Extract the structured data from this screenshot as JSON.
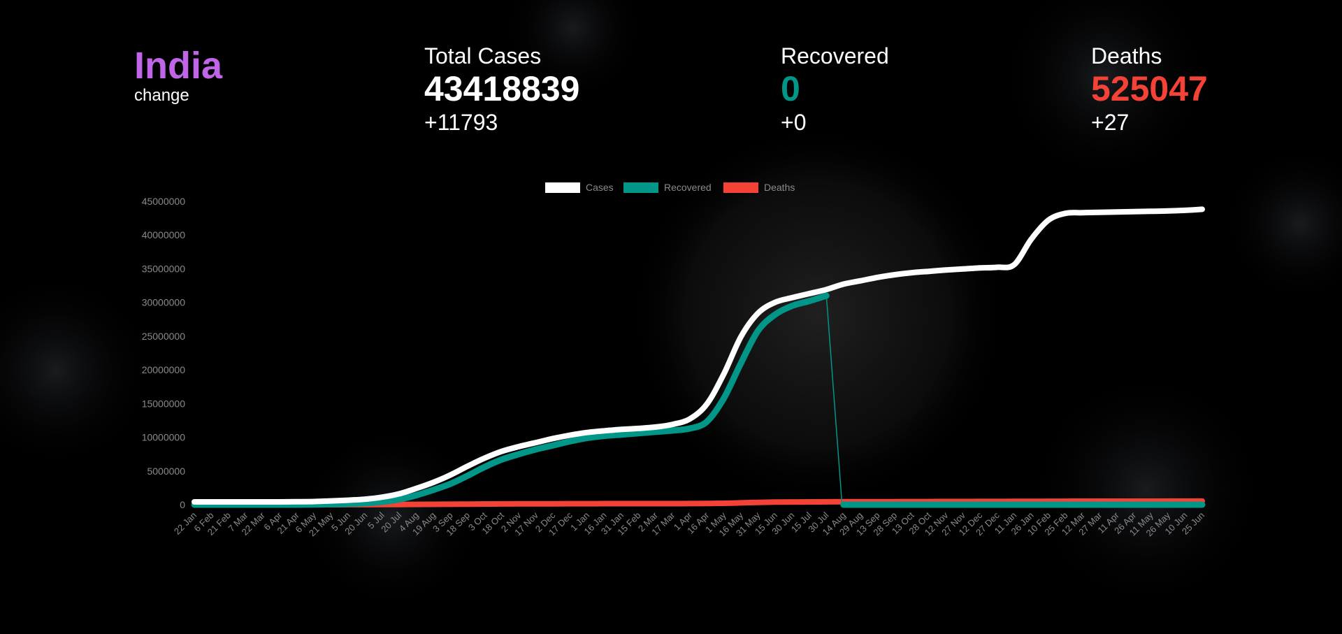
{
  "header": {
    "country": "India",
    "change_label": "change",
    "colors": {
      "country": "#c165e8",
      "cases": "#ffffff",
      "recovered": "#009688",
      "deaths": "#f44336"
    }
  },
  "stats": {
    "total_cases": {
      "label": "Total Cases",
      "value": "43418839",
      "delta": "+11793"
    },
    "recovered": {
      "label": "Recovered",
      "value": "0",
      "delta": "+0"
    },
    "deaths": {
      "label": "Deaths",
      "value": "525047",
      "delta": "+27"
    }
  },
  "chart_data": {
    "type": "line",
    "legend": [
      "Cases",
      "Recovered",
      "Deaths"
    ],
    "legend_position": "top-center",
    "grid": false,
    "ylim": [
      0,
      45000000
    ],
    "y_ticks": [
      "45000000",
      "40000000",
      "35000000",
      "30000000",
      "25000000",
      "20000000",
      "15000000",
      "10000000",
      "5000000",
      "0"
    ],
    "categories": [
      "22 Jan",
      "6 Feb",
      "21 Feb",
      "7 Mar",
      "22 Mar",
      "6 Apr",
      "21 Apr",
      "6 May",
      "21 May",
      "5 Jun",
      "20 Jun",
      "5 Jul",
      "20 Jul",
      "4 Aug",
      "19 Aug",
      "3 Sep",
      "18 Sep",
      "3 Oct",
      "18 Oct",
      "2 Nov",
      "17 Nov",
      "2 Dec",
      "17 Dec",
      "1 Jan",
      "16 Jan",
      "31 Jan",
      "15 Feb",
      "2 Mar",
      "17 Mar",
      "1 Apr",
      "16 Apr",
      "1 May",
      "16 May",
      "31 May",
      "15 Jun",
      "30 Jun",
      "15 Jul",
      "30 Jul",
      "14 Aug",
      "29 Aug",
      "13 Sep",
      "28 Sep",
      "13 Oct",
      "28 Oct",
      "12 Nov",
      "27 Nov",
      "12 Dec",
      "27 Dec",
      "11 Jan",
      "26 Jan",
      "10 Feb",
      "25 Feb",
      "12 Mar",
      "27 Mar",
      "11 Apr",
      "26 Apr",
      "11 May",
      "26 May",
      "10 Jun",
      "25 Jun"
    ],
    "series": [
      {
        "name": "Cases",
        "color": "#ffffff",
        "values": [
          0,
          0,
          0,
          0,
          0,
          5000,
          20000,
          50000,
          150000,
          250000,
          400000,
          700000,
          1200000,
          2000000,
          2900000,
          4000000,
          5300000,
          6500000,
          7500000,
          8200000,
          8800000,
          9400000,
          9900000,
          10300000,
          10550000,
          10750000,
          10900000,
          11100000,
          11500000,
          12300000,
          14500000,
          19000000,
          24500000,
          28000000,
          29600000,
          30300000,
          30900000,
          31500000,
          32300000,
          32800000,
          33300000,
          33700000,
          34000000,
          34200000,
          34400000,
          34550000,
          34700000,
          34800000,
          35200000,
          39000000,
          41800000,
          42800000,
          42900000,
          42950000,
          43000000,
          43050000,
          43100000,
          43150000,
          43250000,
          43400000
        ]
      },
      {
        "name": "Recovered",
        "color": "#009688",
        "values": [
          0,
          0,
          0,
          0,
          0,
          1000,
          5000,
          20000,
          60000,
          120000,
          220000,
          420000,
          800000,
          1400000,
          2200000,
          3100000,
          4300000,
          5600000,
          6700000,
          7500000,
          8200000,
          8800000,
          9400000,
          9900000,
          10200000,
          10400000,
          10600000,
          10800000,
          11000000,
          11300000,
          12300000,
          15800000,
          21000000,
          25800000,
          28200000,
          29500000,
          30200000,
          31000000,
          0,
          0,
          0,
          0,
          0,
          0,
          0,
          0,
          0,
          0,
          0,
          0,
          0,
          0,
          0,
          0,
          0,
          0,
          0,
          0,
          0,
          0
        ]
      },
      {
        "name": "Deaths",
        "color": "#f44336",
        "values": [
          0,
          0,
          0,
          0,
          0,
          100,
          600,
          1800,
          4000,
          7000,
          13000,
          20000,
          28000,
          40000,
          53000,
          66000,
          85000,
          100000,
          115000,
          125000,
          132000,
          138000,
          143000,
          148000,
          151000,
          153000,
          155000,
          157000,
          159000,
          163000,
          178000,
          210000,
          270000,
          340000,
          380000,
          400000,
          412000,
          423000,
          433000,
          440000,
          446000,
          451000,
          455000,
          458000,
          464000,
          468000,
          477000,
          480000,
          484000,
          490000,
          505000,
          512000,
          516000,
          520000,
          521000,
          522000,
          523000,
          524000,
          524500,
          525047
        ]
      }
    ]
  }
}
